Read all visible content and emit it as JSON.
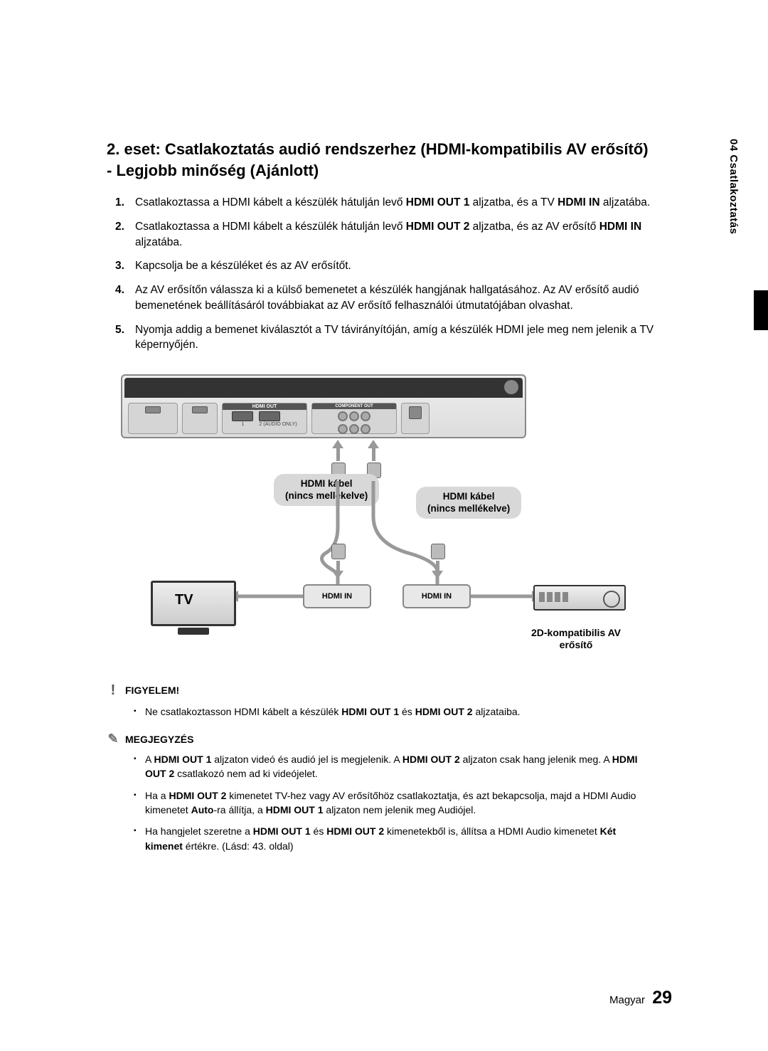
{
  "side_tab": "04   Csatlakoztatás",
  "title": "2. eset: Csatlakoztatás audió rendszerhez (HDMI-kompatibilis AV erősítő) - Legjobb minőség (Ajánlott)",
  "steps": [
    {
      "pre": "Csatlakoztassa a HDMI kábelt a készülék hátulján levő ",
      "b1": "HDMI OUT 1",
      "mid": " aljzatba, és a TV ",
      "b2": "HDMI IN",
      "post": " aljzatába."
    },
    {
      "pre": "Csatlakoztassa a HDMI kábelt a készülék hátulján levő ",
      "b1": "HDMI OUT 2",
      "mid": " aljzatba, és az AV erősítő ",
      "b2": "HDMI IN",
      "post": " aljzatába."
    },
    {
      "pre": "Kapcsolja be a készüléket és az AV erősítőt.",
      "b1": "",
      "mid": "",
      "b2": "",
      "post": ""
    },
    {
      "pre": "Az AV erősítőn válassza ki a külső bemenetet a készülék hangjának hallgatásához. Az AV erősítő audió bemenetének beállításáról továbbiakat az AV erősítő felhasználói útmutatójában olvashat.",
      "b1": "",
      "mid": "",
      "b2": "",
      "post": ""
    },
    {
      "pre": "Nyomja addig a bemenet kiválasztót a TV távirányítóján, amíg a készülék HDMI jele meg nem jelenik a TV képernyőjén.",
      "b1": "",
      "mid": "",
      "b2": "",
      "post": ""
    }
  ],
  "diagram": {
    "cable_label_1_l1": "HDMI kábel",
    "cable_label_1_l2": "(nincs mellékelve)",
    "cable_label_2_l1": "HDMI kábel",
    "cable_label_2_l2": "(nincs mellékelve)",
    "hdmi_in": "HDMI IN",
    "tv": "TV",
    "amp_label_l1": "2D-kompatibilis AV",
    "amp_label_l2": "erősítő",
    "hdmi_num_1": "1",
    "hdmi_num_2": "2 (AUDIO ONLY)"
  },
  "warn_head": "FIGYELEM!",
  "warn_items": [
    {
      "pre": "Ne csatlakoztasson HDMI kábelt a készülék ",
      "b1": "HDMI OUT 1",
      "mid": " és ",
      "b2": "HDMI OUT 2",
      "post": " aljzataiba."
    }
  ],
  "note_head": "MEGJEGYZÉS",
  "note_items": [
    {
      "html_parts": [
        "A ",
        "HDMI OUT 1",
        " aljzaton videó és audió jel is megjelenik. A ",
        "HDMI OUT 2",
        " aljzaton csak hang jelenik meg. A ",
        "HDMI OUT 2",
        " csatlakozó nem ad ki videójelet."
      ]
    },
    {
      "html_parts": [
        "Ha a ",
        "HDMI OUT 2",
        " kimenetet TV-hez vagy AV erősítőhöz csatlakoztatja, és azt bekapcsolja, majd a HDMI Audio kimenetet ",
        "Auto",
        "-ra állítja, a ",
        "HDMI OUT 1",
        " aljzaton nem jelenik meg Audiójel."
      ]
    },
    {
      "html_parts": [
        "Ha hangjelet szeretne a ",
        "HDMI OUT 1",
        " és ",
        "HDMI OUT 2",
        " kimenetekből is, állítsa a HDMI Audio kimenetet ",
        "Két kimenet",
        " értékre. (Lásd: 43. oldal)"
      ]
    }
  ],
  "footer_lang": "Magyar",
  "footer_page": "29",
  "colors": {
    "grey": "#999999",
    "label_bg": "#d8d8d8"
  }
}
